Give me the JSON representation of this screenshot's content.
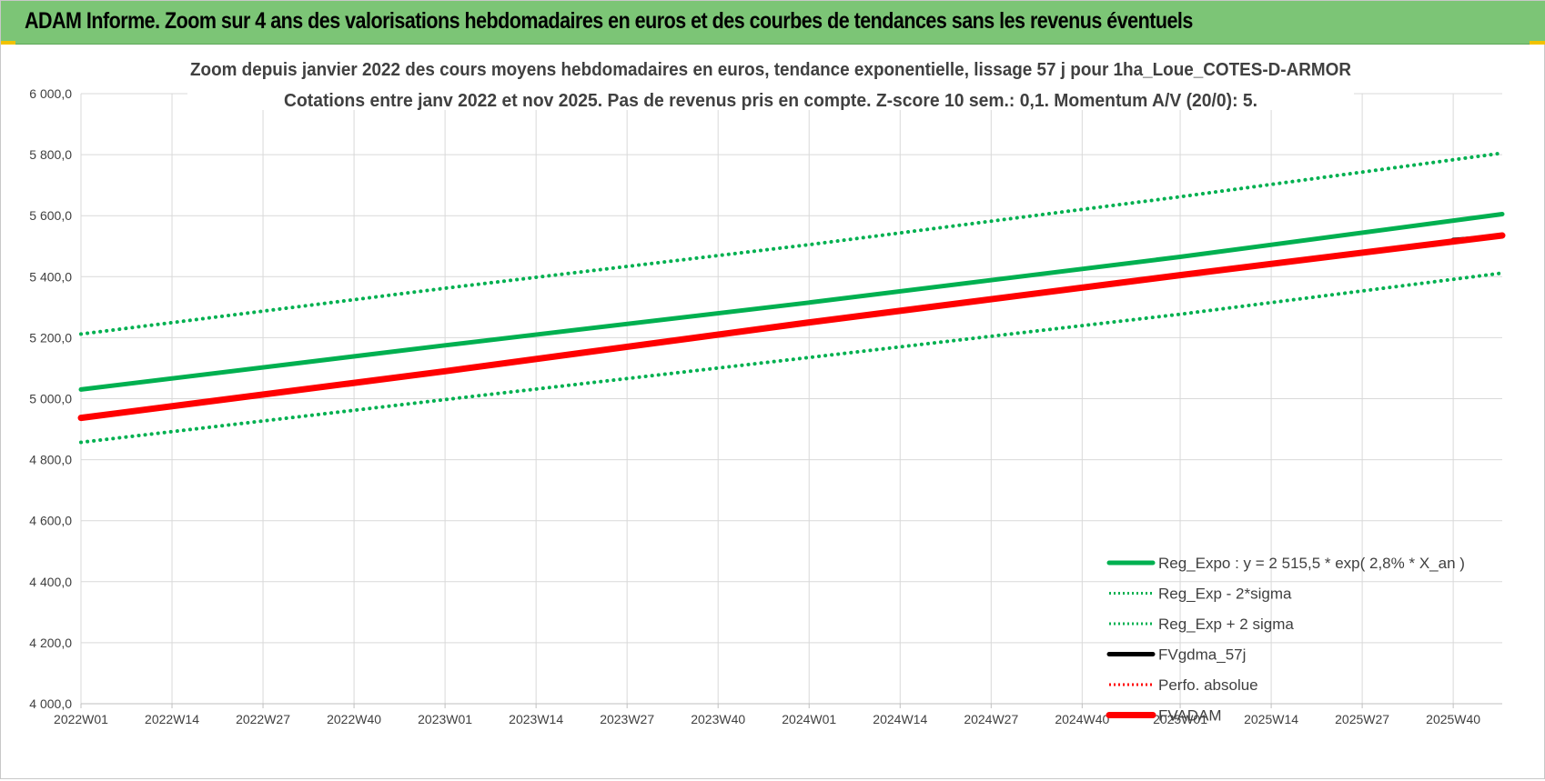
{
  "header": {
    "title": "ADAM Informe. Zoom sur 4 ans des valorisations hebdomadaires en euros et des courbes de tendances sans les revenus éventuels"
  },
  "colors": {
    "header_bg": "#7cc576",
    "green": "#00b050",
    "red": "#ff0000",
    "black": "#000000",
    "grid": "#d9d9d9",
    "text": "#404040"
  },
  "chart_data": {
    "type": "line",
    "title_lines": [
      "Zoom depuis janvier 2022 des cours moyens hebdomadaires en euros, tendance exponentielle, lissage 57 j pour 1ha_Loue_COTES-D-ARMOR",
      "Cotations entre janv 2022 et nov 2025. Pas de revenus pris en compte. Z-score 10 sem.: 0,1. Momentum A/V (20/0): 5."
    ],
    "ylim": [
      4000,
      6000
    ],
    "y_ticks": [
      {
        "value": 4000,
        "label": "4 000,0"
      },
      {
        "value": 4200,
        "label": "4 200,0"
      },
      {
        "value": 4400,
        "label": "4 400,0"
      },
      {
        "value": 4600,
        "label": "4 600,0"
      },
      {
        "value": 4800,
        "label": "4 800,0"
      },
      {
        "value": 5000,
        "label": "5 000,0"
      },
      {
        "value": 5200,
        "label": "5 200,0"
      },
      {
        "value": 5400,
        "label": "5 400,0"
      },
      {
        "value": 5600,
        "label": "5 600,0"
      },
      {
        "value": 5800,
        "label": "5 800,0"
      },
      {
        "value": 6000,
        "label": "6 000,0"
      }
    ],
    "x_range": [
      0,
      203
    ],
    "x_ticks": [
      {
        "index": 0,
        "label": "2022W01"
      },
      {
        "index": 13,
        "label": "2022W14"
      },
      {
        "index": 26,
        "label": "2022W27"
      },
      {
        "index": 39,
        "label": "2022W40"
      },
      {
        "index": 52,
        "label": "2023W01"
      },
      {
        "index": 65,
        "label": "2023W14"
      },
      {
        "index": 78,
        "label": "2023W27"
      },
      {
        "index": 91,
        "label": "2023W40"
      },
      {
        "index": 104,
        "label": "2024W01"
      },
      {
        "index": 117,
        "label": "2024W14"
      },
      {
        "index": 130,
        "label": "2024W27"
      },
      {
        "index": 143,
        "label": "2024W40"
      },
      {
        "index": 157,
        "label": "2025W01"
      },
      {
        "index": 170,
        "label": "2025W14"
      },
      {
        "index": 183,
        "label": "2025W27"
      },
      {
        "index": 196,
        "label": "2025W40"
      }
    ],
    "series": [
      {
        "name": "Reg_Expo : y = 2 515,5 * exp( 2,8% *  X_an )",
        "style": "solid",
        "color": "#00b050",
        "x": [
          0,
          52,
          104,
          157,
          203
        ],
        "y": [
          5030,
          5175,
          5315,
          5465,
          5605
        ]
      },
      {
        "name": "Reg_Exp - 2*sigma",
        "style": "dotted",
        "color": "#00b050",
        "x": [
          0,
          52,
          104,
          157,
          203
        ],
        "y": [
          4857,
          4997,
          5135,
          5277,
          5412
        ]
      },
      {
        "name": "Reg_Exp + 2 sigma",
        "style": "dotted",
        "color": "#00b050",
        "x": [
          0,
          52,
          104,
          157,
          203
        ],
        "y": [
          5212,
          5362,
          5505,
          5662,
          5805
        ]
      },
      {
        "name": "FVgdma_57j",
        "style": "solid",
        "color": "#000000",
        "x": [
          196,
          203
        ],
        "y": [
          5520,
          5533
        ]
      },
      {
        "name": "Perfo. absolue",
        "style": "dotted",
        "color": "#ff0000",
        "x": [],
        "y": []
      },
      {
        "name": "FVADAM",
        "style": "thick",
        "color": "#ff0000",
        "x": [
          0,
          52,
          104,
          157,
          203
        ],
        "y": [
          4937,
          5090,
          5250,
          5405,
          5535
        ]
      }
    ]
  }
}
